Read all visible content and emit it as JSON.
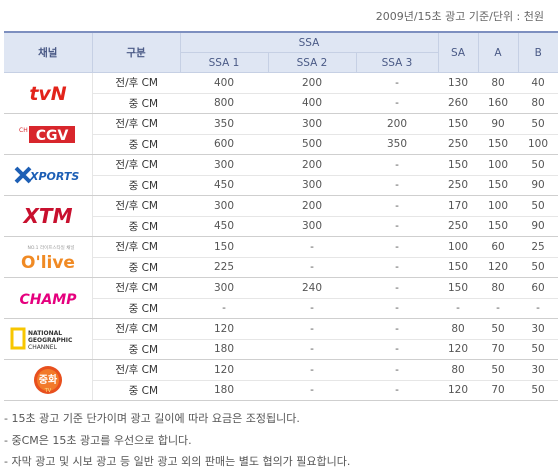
{
  "unit_note": "2009년/15초 광고 기준/단위 : 천원",
  "headers": {
    "channel": "채널",
    "category": "구분",
    "ssa_group": "SSA",
    "ssa1": "SSA 1",
    "ssa2": "SSA 2",
    "ssa3": "SSA 3",
    "sa": "SA",
    "a": "A",
    "b": "B"
  },
  "logos": {
    "tvn": "tvN",
    "cgv_ch": "CH",
    "cgv": "CGV",
    "xports": "XPORTS",
    "xtm": "XTM",
    "olive_sub": "NO.1 라이프스타일 채널",
    "olive": "O'live",
    "champ": "CHAMP",
    "natgeo_1": "NATIONAL",
    "natgeo_2": "GEOGRAPHIC",
    "natgeo_3": "CHANNEL",
    "junghwa": "중화",
    "junghwa_sub": "TV"
  },
  "channels": [
    {
      "logo": "tvn",
      "rows": [
        {
          "type": "전/후 CM",
          "ssa1": "400",
          "ssa2": "200",
          "ssa3": "-",
          "sa": "130",
          "a": "80",
          "b": "40"
        },
        {
          "type": "중 CM",
          "ssa1": "800",
          "ssa2": "400",
          "ssa3": "-",
          "sa": "260",
          "a": "160",
          "b": "80"
        }
      ]
    },
    {
      "logo": "cgv",
      "rows": [
        {
          "type": "전/후 CM",
          "ssa1": "350",
          "ssa2": "300",
          "ssa3": "200",
          "sa": "150",
          "a": "90",
          "b": "50"
        },
        {
          "type": "중 CM",
          "ssa1": "600",
          "ssa2": "500",
          "ssa3": "350",
          "sa": "250",
          "a": "150",
          "b": "100"
        }
      ]
    },
    {
      "logo": "xports",
      "rows": [
        {
          "type": "전/후 CM",
          "ssa1": "300",
          "ssa2": "200",
          "ssa3": "-",
          "sa": "150",
          "a": "100",
          "b": "50"
        },
        {
          "type": "중 CM",
          "ssa1": "450",
          "ssa2": "300",
          "ssa3": "-",
          "sa": "250",
          "a": "150",
          "b": "90"
        }
      ]
    },
    {
      "logo": "xtm",
      "rows": [
        {
          "type": "전/후 CM",
          "ssa1": "300",
          "ssa2": "200",
          "ssa3": "-",
          "sa": "170",
          "a": "100",
          "b": "50"
        },
        {
          "type": "중 CM",
          "ssa1": "450",
          "ssa2": "300",
          "ssa3": "-",
          "sa": "250",
          "a": "150",
          "b": "90"
        }
      ]
    },
    {
      "logo": "olive",
      "rows": [
        {
          "type": "전/후 CM",
          "ssa1": "150",
          "ssa2": "-",
          "ssa3": "-",
          "sa": "100",
          "a": "60",
          "b": "25"
        },
        {
          "type": "중 CM",
          "ssa1": "225",
          "ssa2": "-",
          "ssa3": "-",
          "sa": "150",
          "a": "120",
          "b": "50"
        }
      ]
    },
    {
      "logo": "champ",
      "rows": [
        {
          "type": "전/후 CM",
          "ssa1": "300",
          "ssa2": "240",
          "ssa3": "-",
          "sa": "150",
          "a": "80",
          "b": "60"
        },
        {
          "type": "중 CM",
          "ssa1": "-",
          "ssa2": "-",
          "ssa3": "-",
          "sa": "-",
          "a": "-",
          "b": "-"
        }
      ]
    },
    {
      "logo": "natgeo",
      "rows": [
        {
          "type": "전/후 CM",
          "ssa1": "120",
          "ssa2": "-",
          "ssa3": "-",
          "sa": "80",
          "a": "50",
          "b": "30"
        },
        {
          "type": "중 CM",
          "ssa1": "180",
          "ssa2": "-",
          "ssa3": "-",
          "sa": "120",
          "a": "70",
          "b": "50"
        }
      ]
    },
    {
      "logo": "junghwa",
      "rows": [
        {
          "type": "전/후 CM",
          "ssa1": "120",
          "ssa2": "-",
          "ssa3": "-",
          "sa": "80",
          "a": "50",
          "b": "30"
        },
        {
          "type": "중 CM",
          "ssa1": "180",
          "ssa2": "-",
          "ssa3": "-",
          "sa": "120",
          "a": "70",
          "b": "50"
        }
      ]
    }
  ],
  "notes": [
    "- 15초 광고 기준 단가이며 광고 길이에 따라 요금은 조정됩니다.",
    "- 중CM은 15초 광고를 우선으로 합니다.",
    "- 자막 광고 및 시보 광고 등 일반 광고 외의 판매는 별도 협의가 필요합니다."
  ],
  "colors": {
    "header_bg": "#dfe6f3",
    "header_text": "#4a5a86",
    "header_border": "#7d8fbf",
    "tvn_red": "#e2231a",
    "cgv_red": "#d8262c",
    "xports_blue": "#1d5fb5",
    "xtm_red": "#c8102e",
    "olive_orange": "#f08a24",
    "champ_pink": "#e5007e",
    "natgeo_yellow": "#f7c600"
  }
}
